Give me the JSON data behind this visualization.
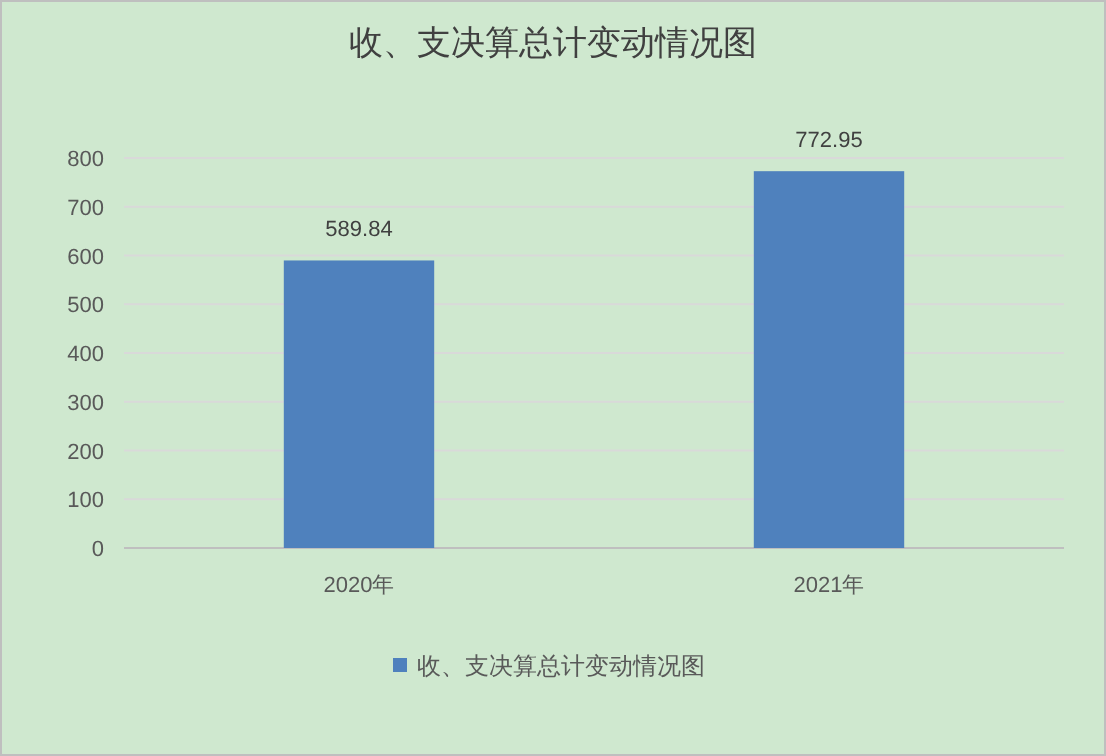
{
  "chart_data": {
    "type": "bar",
    "title": "收、支决算总计变动情况图",
    "categories": [
      "2020年",
      "2021年"
    ],
    "series": [
      {
        "name": "收、支决算总计变动情况图",
        "color": "#4f81bd",
        "values": [
          589.84,
          772.95
        ]
      }
    ],
    "ylim": [
      0,
      800
    ],
    "yticks": [
      0,
      100,
      200,
      300,
      400,
      500,
      600,
      700,
      800
    ],
    "grid": "y",
    "legend": "bottom",
    "data_labels": true
  }
}
